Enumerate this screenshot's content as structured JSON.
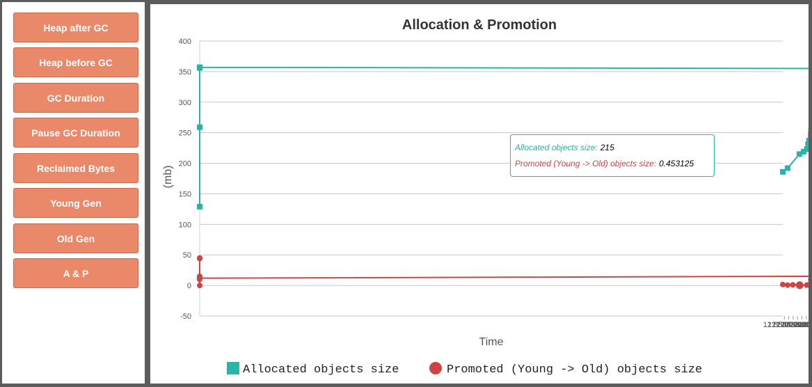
{
  "sidebar": {
    "buttons": [
      "Heap after GC",
      "Heap before GC",
      "GC Duration",
      "Pause GC Duration",
      "Reclaimed Bytes",
      "Young Gen",
      "Old Gen",
      "A & P"
    ]
  },
  "tooltip": {
    "allocated_label": "Allocated objects size:",
    "allocated_value": "215",
    "promoted_label": "Promoted (Young -> Old) objects size:",
    "promoted_value": "0.453125"
  },
  "colors": {
    "allocated": "#2ab3a6",
    "promoted": "#cc4444"
  },
  "chart_data": {
    "type": "line",
    "title": "Allocation & Promotion",
    "xlabel": "Time",
    "ylabel": "(mb)",
    "ylim": [
      -50,
      400
    ],
    "yticks": [
      400,
      350,
      300,
      250,
      200,
      150,
      100,
      50,
      0,
      -50
    ],
    "xlim": [
      "11:59:48",
      "12:56:48"
    ],
    "xticks": [
      "12:05:00 am",
      "12:10:00 am",
      "12:15:00 am",
      "12:20:00 am",
      "12:25:00 am",
      "12:30:00 am",
      "12:35:00 am",
      "12:40:00 am",
      "12:45:00 am",
      "12:50:00 am",
      "12:55:00 am"
    ],
    "grid": true,
    "legend_position": "bottom",
    "series": [
      {
        "name": "Allocated objects size",
        "marker": "square",
        "x": [
          "11:59:48",
          "11:59:48",
          "11:59:49",
          "11:59:50",
          "11:59:53",
          "12:00:14",
          "12:00:48",
          "12:04:41",
          "12:06:34",
          "12:09:31",
          "12:09:43",
          "12:09:59",
          "12:15:51",
          "12:16:29",
          "12:20:04",
          "12:21:43",
          "12:23:05",
          "12:24:14",
          "12:24:40",
          "12:25:00",
          "12:26:53",
          "12:28:05",
          "12:29:32",
          "12:33:10",
          "12:37:53",
          "12:51:20",
          "12:56:48"
        ],
        "values": [
          129,
          259,
          356,
          357,
          357,
          355,
          355,
          357,
          357,
          345,
          333,
          317,
          310,
          299,
          289,
          280,
          271,
          262,
          253,
          246,
          237,
          231,
          223,
          219,
          215,
          192,
          186
        ]
      },
      {
        "name": "Promoted (Young -> Old) objects size",
        "marker": "circle",
        "x": [
          "11:59:48",
          "11:59:49",
          "11:59:50",
          "11:59:51",
          "11:59:53",
          "11:59:55",
          "12:00:50",
          "12:04:51",
          "12:06:38",
          "12:09:33",
          "12:10:00",
          "12:15:51",
          "12:16:29",
          "12:20:04",
          "12:21:14",
          "12:22:40",
          "12:24:10",
          "12:24:40",
          "12:24:58",
          "12:27:06",
          "12:28:05",
          "12:29:40",
          "12:37:33",
          "12:37:57",
          "12:45:23",
          "12:51:20",
          "12:56:48"
        ],
        "values": [
          0,
          45,
          44,
          15,
          10,
          12,
          15,
          9,
          4,
          1.2,
          0.6,
          0.5,
          1.2,
          2.5,
          1.5,
          0.8,
          0.8,
          0.6,
          9.5,
          0.9,
          0.9,
          0.5,
          0.45,
          1.5,
          1,
          0.6,
          1.5
        ]
      }
    ]
  }
}
